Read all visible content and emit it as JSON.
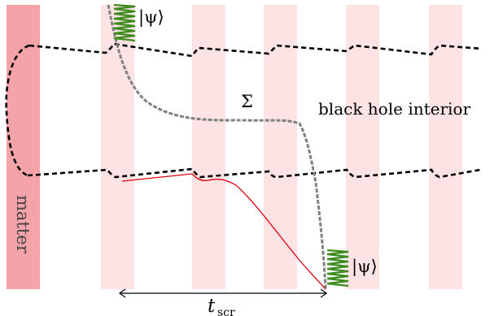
{
  "labels": {
    "matter": "matter",
    "interior": "black hole interior",
    "sigma": "Σ",
    "psi_top": "|ψ⟩",
    "psi_bottom": "|ψ⟩",
    "t_main": "t",
    "t_sub": "scr"
  },
  "colors": {
    "matter_band": "#f4a3a8",
    "light_band": "#fde3e4",
    "dashed_boundary": "#000000",
    "sigma_curve": "#808080",
    "red_curve": "#e0000f",
    "wave_packet": "#3a8a1c"
  },
  "icons": {
    "wave_packet": "wave-packet-icon",
    "double_arrow": "double-arrow-icon"
  }
}
